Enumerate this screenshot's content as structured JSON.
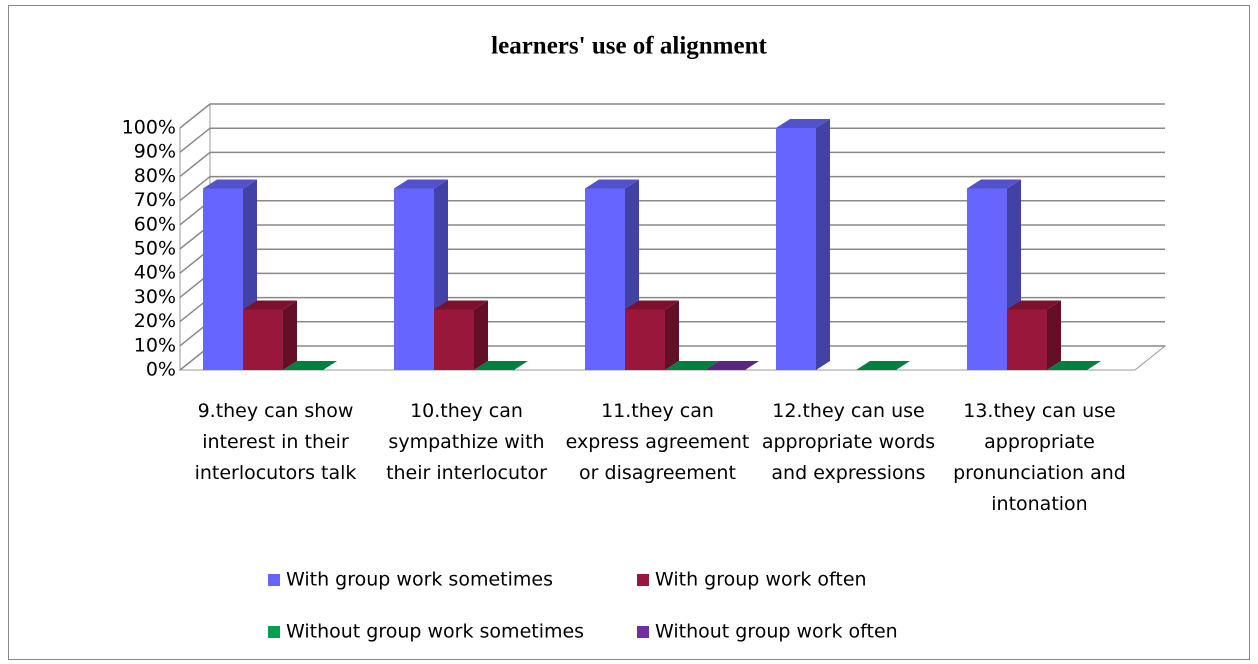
{
  "chart_data": {
    "type": "bar3d",
    "title": "learners'  use of alignment",
    "categories": [
      "9.they can show interest in their interlocutors talk",
      "10.they can sympathize with their interlocutor",
      "11.they can express agreement or disagreement",
      "12.they can use appropriate words and expressions",
      "13.they can use appropriate pronunciation and intonation"
    ],
    "series": [
      {
        "name": "With group work sometimes",
        "color": "#6666ff",
        "values": [
          75,
          75,
          75,
          100,
          75
        ]
      },
      {
        "name": "With group work often",
        "color": "#99173a",
        "values": [
          25,
          25,
          25,
          null,
          25
        ]
      },
      {
        "name": "Without group work sometimes",
        "color": "#00a050",
        "values": [
          0,
          0,
          0,
          0,
          0
        ]
      },
      {
        "name": "Without group work often",
        "color": "#7030a0",
        "values": [
          null,
          null,
          0,
          null,
          null
        ]
      }
    ],
    "ylim": [
      0,
      100
    ],
    "yticks": [
      {
        "value": 0,
        "label": "0%"
      },
      {
        "value": 10,
        "label": "10%"
      },
      {
        "value": 20,
        "label": "20%"
      },
      {
        "value": 30,
        "label": "30%"
      },
      {
        "value": 40,
        "label": "40%"
      },
      {
        "value": 50,
        "label": "50%"
      },
      {
        "value": 60,
        "label": "60%"
      },
      {
        "value": 70,
        "label": "70%"
      },
      {
        "value": 80,
        "label": "80%"
      },
      {
        "value": 90,
        "label": "90%"
      },
      {
        "value": 100,
        "label": "100%"
      }
    ],
    "grid": true,
    "legend": "bottom"
  }
}
